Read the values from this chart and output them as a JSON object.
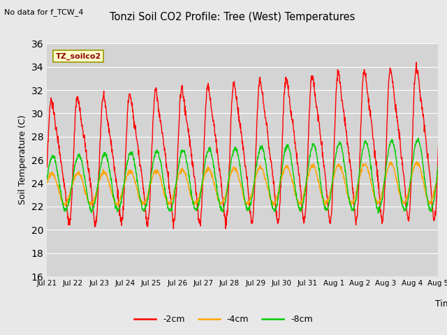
{
  "title": "Tonzi Soil CO2 Profile: Tree (West) Temperatures",
  "subtitle": "No data for f_TCW_4",
  "ylabel": "Soil Temperature (C)",
  "xlabel": "Time",
  "ylim": [
    16,
    36
  ],
  "yticks": [
    16,
    18,
    20,
    22,
    24,
    26,
    28,
    30,
    32,
    34,
    36
  ],
  "fig_bg": "#e8e8e8",
  "plot_bg": "#d4d4d4",
  "legend_label": "TZ_soilco2",
  "series_labels": [
    "-2cm",
    "-4cm",
    "-8cm"
  ],
  "series_colors": [
    "#ff0000",
    "#ffa500",
    "#00cc00"
  ],
  "n_points": 1600
}
